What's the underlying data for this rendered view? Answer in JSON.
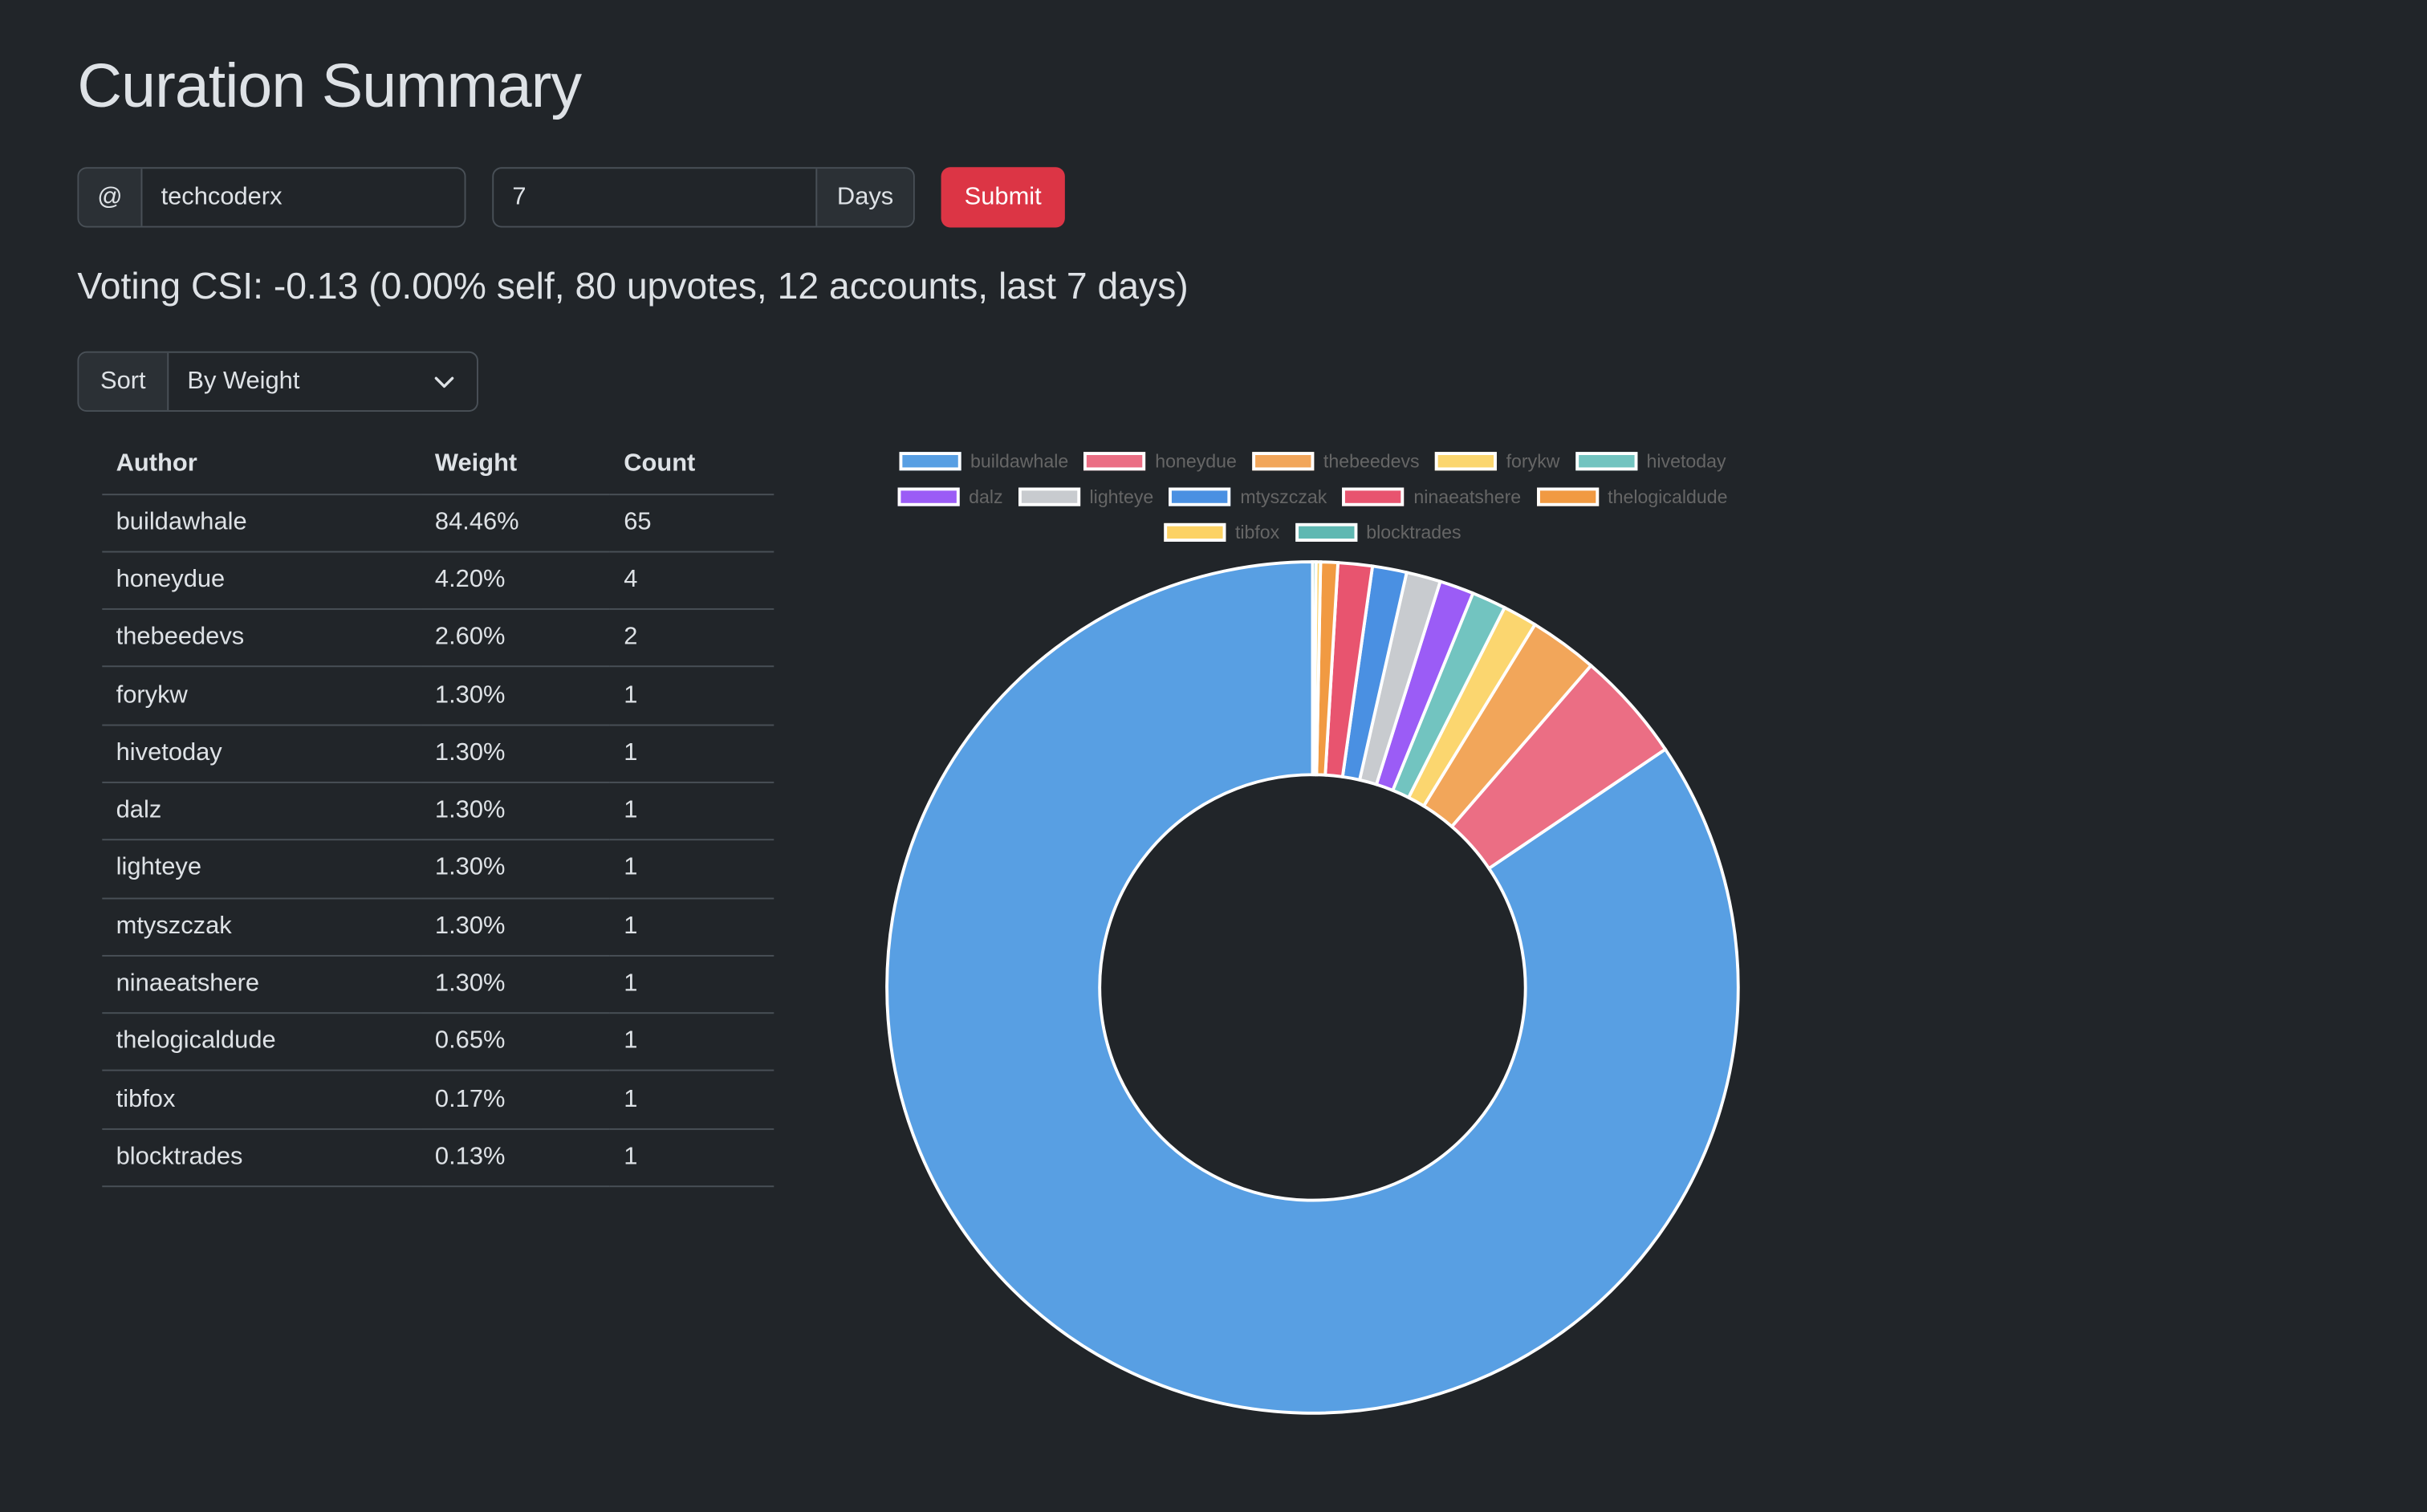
{
  "page": {
    "title": "Curation Summary",
    "summary": "Voting CSI: -0.13 (0.00% self, 80 upvotes, 12 accounts, last 7 days)"
  },
  "form": {
    "user_prefix": "@",
    "username": "techcoderx",
    "days_value": "7",
    "days_label": "Days",
    "submit_label": "Submit",
    "sort_label": "Sort",
    "sort_selected": "By Weight"
  },
  "table": {
    "headers": [
      "Author",
      "Weight",
      "Count"
    ],
    "rows": [
      {
        "author": "buildawhale",
        "weight": "84.46%",
        "count": "65"
      },
      {
        "author": "honeydue",
        "weight": "4.20%",
        "count": "4"
      },
      {
        "author": "thebeedevs",
        "weight": "2.60%",
        "count": "2"
      },
      {
        "author": "forykw",
        "weight": "1.30%",
        "count": "1"
      },
      {
        "author": "hivetoday",
        "weight": "1.30%",
        "count": "1"
      },
      {
        "author": "dalz",
        "weight": "1.30%",
        "count": "1"
      },
      {
        "author": "lighteye",
        "weight": "1.30%",
        "count": "1"
      },
      {
        "author": "mtyszczak",
        "weight": "1.30%",
        "count": "1"
      },
      {
        "author": "ninaeatshere",
        "weight": "1.30%",
        "count": "1"
      },
      {
        "author": "thelogicaldude",
        "weight": "0.65%",
        "count": "1"
      },
      {
        "author": "tibfox",
        "weight": "0.17%",
        "count": "1"
      },
      {
        "author": "blocktrades",
        "weight": "0.13%",
        "count": "1"
      }
    ]
  },
  "chart_data": {
    "type": "pie",
    "labels": [
      "buildawhale",
      "honeydue",
      "thebeedevs",
      "forykw",
      "hivetoday",
      "dalz",
      "lighteye",
      "mtyszczak",
      "ninaeatshere",
      "thelogicaldude",
      "tibfox",
      "blocktrades"
    ],
    "values": [
      84.46,
      4.2,
      2.6,
      1.3,
      1.3,
      1.3,
      1.3,
      1.3,
      1.3,
      0.65,
      0.17,
      0.13
    ],
    "colors": [
      "#589fe3",
      "#eb6e84",
      "#f2a65a",
      "#fbd66f",
      "#72c4c0",
      "#9b5cf6",
      "#c8cbcf",
      "#4a90e2",
      "#e8546f",
      "#f19a42",
      "#fcd264",
      "#5fb8b2"
    ],
    "donut": true,
    "legend": "top",
    "direction": "counterclockwise"
  }
}
